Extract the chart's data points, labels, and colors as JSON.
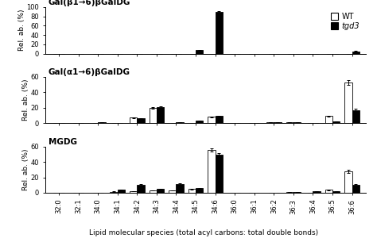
{
  "categories": [
    "32:0",
    "32:1",
    "34:0",
    "34:1",
    "34:2",
    "34:3",
    "34:4",
    "34:5",
    "34:6",
    "36:0",
    "36:1",
    "36:2",
    "36:3",
    "36:4",
    "36:5",
    "36:6"
  ],
  "panel1_title": "Gal(β1→6)βGalDG",
  "panel2_title": "Gal(α1→6)βGalDG",
  "panel3_title": "MGDG",
  "panel1_wt": [
    0,
    0,
    0,
    0,
    0,
    0,
    0,
    0,
    0,
    0,
    0,
    0,
    0,
    0,
    0,
    0
  ],
  "panel1_tgd": [
    0,
    0,
    0,
    0,
    0,
    0,
    0,
    7,
    90,
    0,
    0,
    0,
    0,
    0,
    0,
    5
  ],
  "panel2_wt": [
    0,
    0,
    0,
    0,
    7,
    20,
    0.5,
    0,
    8,
    0,
    0,
    1,
    1,
    0,
    9,
    53
  ],
  "panel2_tgd": [
    0,
    0,
    1,
    0,
    6,
    21,
    1,
    3,
    9,
    0,
    0,
    1,
    1,
    0,
    2.5,
    17
  ],
  "panel3_wt": [
    0,
    0,
    0,
    1.5,
    2,
    3,
    3,
    5,
    55,
    0,
    0,
    0,
    1,
    0,
    4,
    28
  ],
  "panel3_tgd": [
    0,
    0,
    0,
    4,
    10,
    5,
    11,
    6,
    49,
    0,
    0,
    0,
    1,
    2,
    2,
    10
  ],
  "panel1_wt_err": [
    0,
    0,
    0,
    0,
    0,
    0,
    0,
    0,
    0,
    0,
    0,
    0,
    0,
    0,
    0,
    0
  ],
  "panel1_tgd_err": [
    0,
    0,
    0,
    0,
    0,
    0,
    0,
    0.5,
    2,
    0,
    0,
    0,
    0,
    0,
    0,
    0.5
  ],
  "panel2_wt_err": [
    0,
    0,
    0,
    0,
    0.5,
    1,
    0.2,
    0,
    0.8,
    0,
    0,
    0.2,
    0.2,
    0,
    0.8,
    3
  ],
  "panel2_tgd_err": [
    0,
    0,
    0.2,
    0,
    0.5,
    1,
    0.2,
    0.3,
    1,
    0,
    0,
    0.2,
    0.2,
    0,
    0.3,
    2
  ],
  "panel3_wt_err": [
    0,
    0,
    0,
    0.3,
    0.3,
    0.4,
    0.4,
    0.5,
    2,
    0,
    0,
    0,
    0.2,
    0,
    0.5,
    2
  ],
  "panel3_tgd_err": [
    0,
    0,
    0,
    0.5,
    1,
    0.5,
    1,
    0.5,
    2,
    0,
    0,
    0,
    0.2,
    0.3,
    0.3,
    1
  ],
  "panel1_ylim": [
    0,
    100
  ],
  "panel2_ylim": [
    0,
    60
  ],
  "panel3_ylim": [
    0,
    60
  ],
  "panel1_yticks": [
    0,
    20,
    40,
    60,
    80,
    100
  ],
  "panel2_yticks": [
    0,
    20,
    40,
    60
  ],
  "panel3_yticks": [
    0,
    20,
    40,
    60
  ],
  "ylabel": "Rel. ab. (%)",
  "xlabel": "Lipid molecular species (total acyl carbons: total double bonds)",
  "wt_color": "white",
  "tgd_color": "black",
  "wt_edge": "black",
  "tgd_edge": "black",
  "bar_width": 0.38,
  "legend_labels": [
    "WT",
    "tgd3"
  ],
  "fontsize_title": 7.5,
  "fontsize_tick": 6,
  "fontsize_label": 6.5,
  "fontsize_legend": 7
}
